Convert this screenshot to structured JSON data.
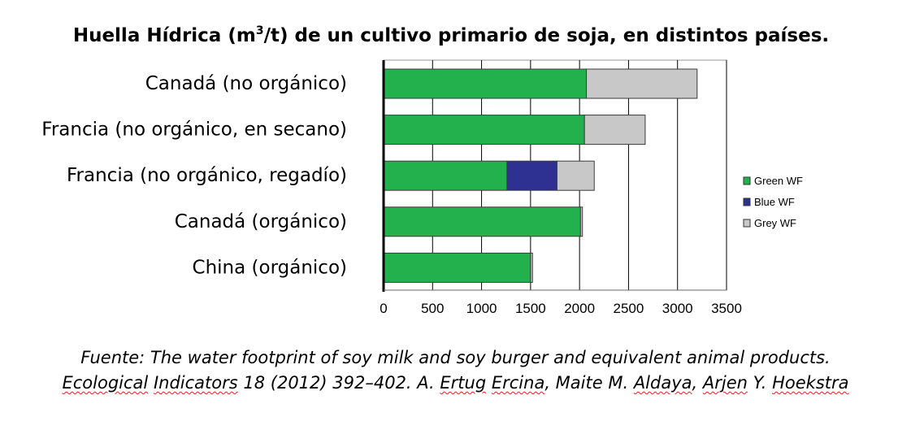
{
  "chart_data": {
    "type": "bar",
    "orientation": "horizontal",
    "stacked": true,
    "title": {
      "before": "Huella Hídrica (m",
      "sup": "3",
      "after": "/t) de un cultivo primario de soja, en distintos países."
    },
    "categories": [
      "Canadá (no orgánico)",
      "Francia (no orgánico, en secano)",
      "Francia (no orgánico, regadío)",
      "Canadá (orgánico)",
      "China (orgánico)"
    ],
    "series": [
      {
        "name": "Green WF",
        "color": "#22b14c",
        "values": [
          2070,
          2050,
          1260,
          2010,
          1500
        ]
      },
      {
        "name": "Blue WF",
        "color": "#2e3192",
        "values": [
          0,
          0,
          510,
          0,
          0
        ]
      },
      {
        "name": "Grey WF",
        "color": "#c8c8c8",
        "values": [
          1130,
          620,
          380,
          20,
          20
        ]
      }
    ],
    "xlim": [
      0,
      3500
    ],
    "xticks": [
      0,
      500,
      1000,
      1500,
      2000,
      2500,
      3000,
      3500
    ],
    "xtick_labels": [
      "0",
      "500",
      "1000",
      "1500",
      "2000",
      "2500",
      "3000",
      "3500"
    ],
    "grid": true,
    "legend_position": "right"
  },
  "source": {
    "line1": "Fuente: The water footprint of soy milk and soy burger and equivalent animal products.",
    "line2": [
      {
        "text": "Ecological",
        "squiggle": true
      },
      {
        "text": " ",
        "squiggle": false
      },
      {
        "text": "Indicators",
        "squiggle": true
      },
      {
        "text": " 18 (2012) 392–402. A. ",
        "squiggle": false
      },
      {
        "text": "Ertug",
        "squiggle": true
      },
      {
        "text": " ",
        "squiggle": false
      },
      {
        "text": "Ercina",
        "squiggle": true
      },
      {
        "text": ", Maite M. ",
        "squiggle": false
      },
      {
        "text": "Aldaya",
        "squiggle": true
      },
      {
        "text": ", ",
        "squiggle": false
      },
      {
        "text": "Arjen",
        "squiggle": true
      },
      {
        "text": " Y. ",
        "squiggle": false
      },
      {
        "text": "Hoekstra",
        "squiggle": true
      }
    ]
  }
}
